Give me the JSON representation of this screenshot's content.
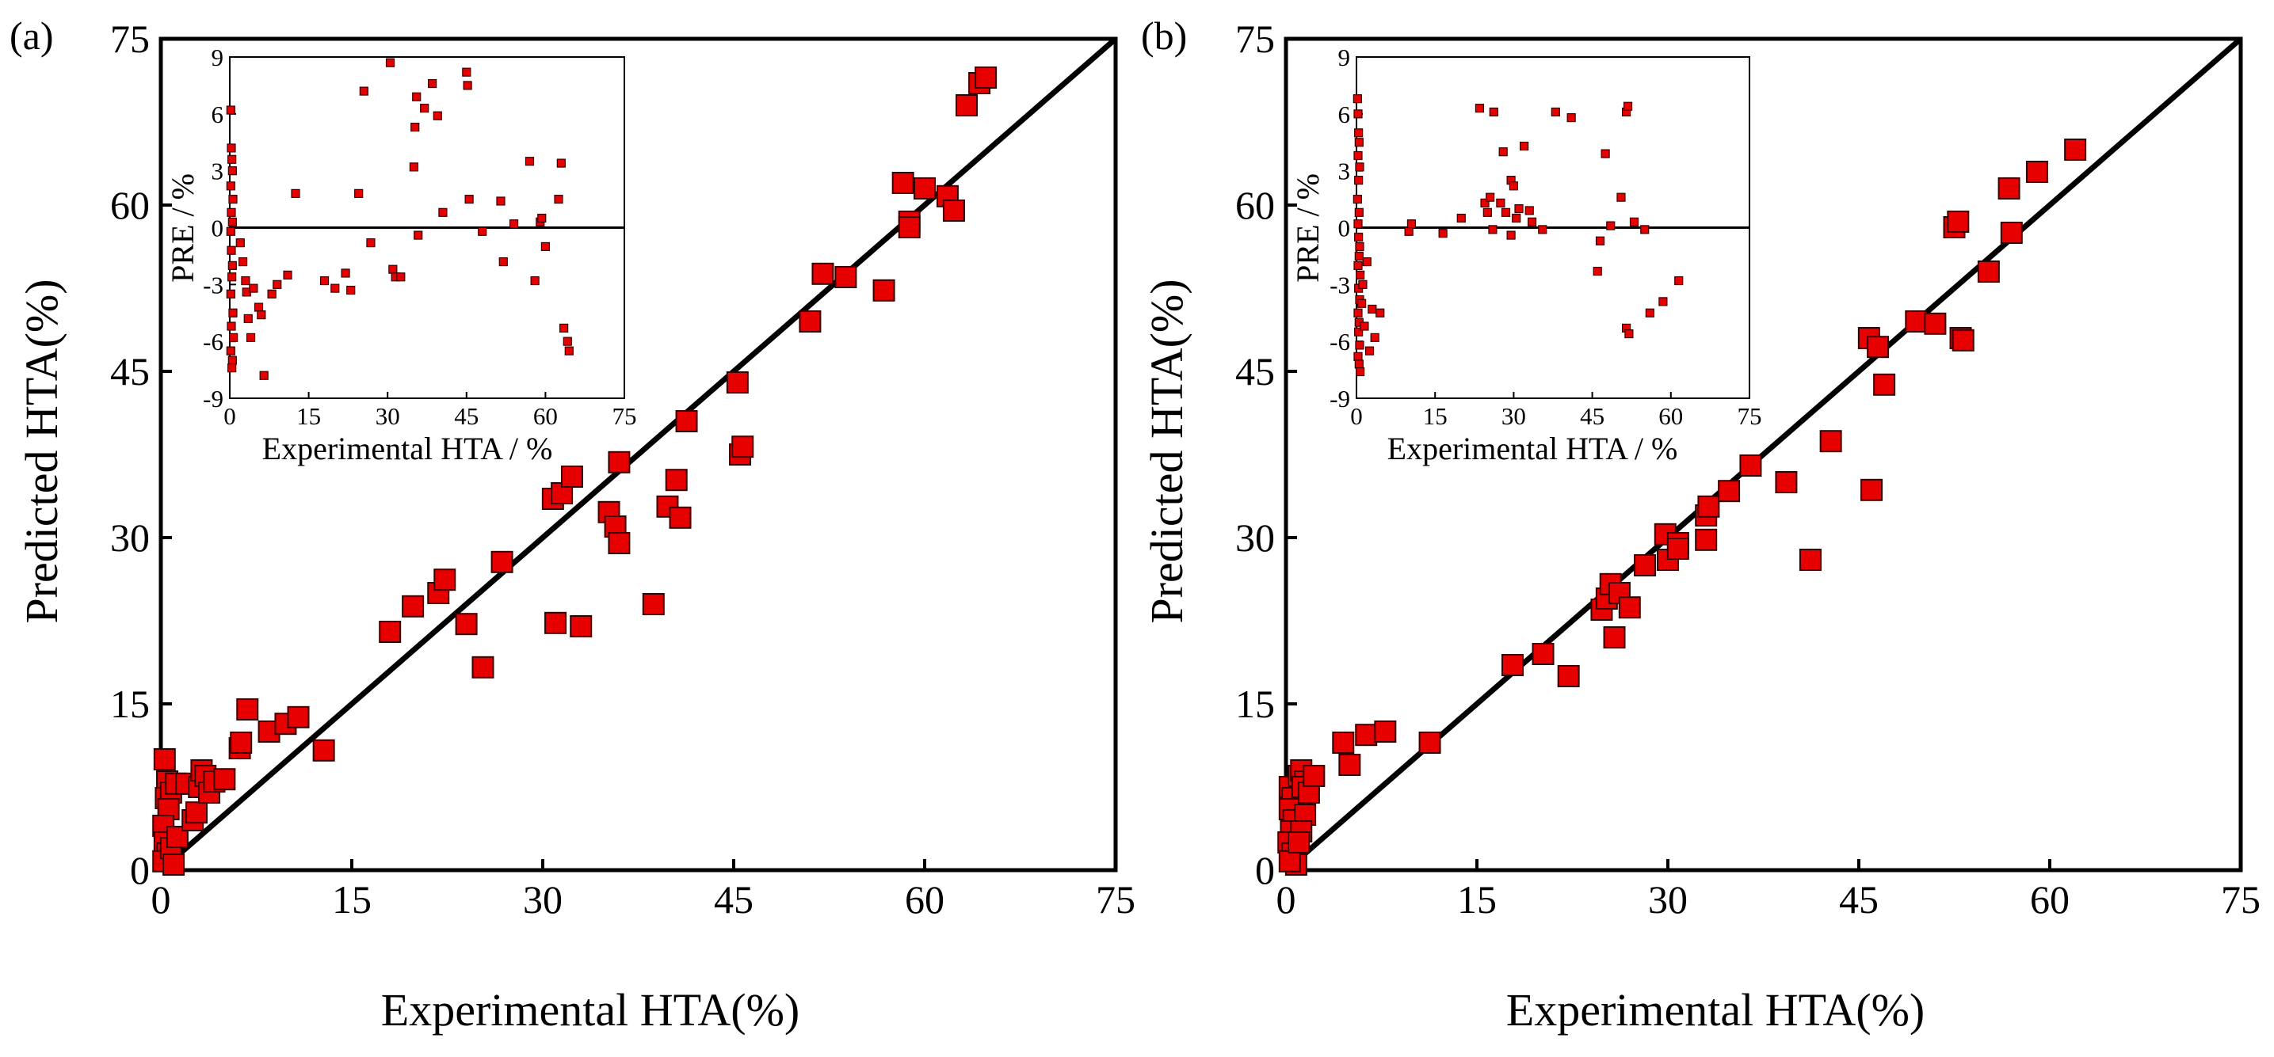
{
  "figure": {
    "panels": [
      "(a)",
      "(b)"
    ]
  },
  "chart_data": [
    {
      "type": "scatter",
      "panel_label": "(a)",
      "xlabel": "Experimental HTA(%)",
      "ylabel": "Predicted HTA(%)",
      "xlim": [
        0,
        75
      ],
      "ylim": [
        0,
        75
      ],
      "xticks": [
        0,
        15,
        30,
        45,
        60,
        75
      ],
      "yticks": [
        0,
        15,
        30,
        45,
        60,
        75
      ],
      "reference_line": "y = x",
      "marker": "square",
      "marker_color": "#e60000",
      "line_color": "#000000",
      "points": [
        [
          0.3,
          10.0
        ],
        [
          0.5,
          8.0
        ],
        [
          0.4,
          6.5
        ],
        [
          0.8,
          7.0
        ],
        [
          0.6,
          5.5
        ],
        [
          1.2,
          7.8
        ],
        [
          0.2,
          4.0
        ],
        [
          0.3,
          2.5
        ],
        [
          0.5,
          1.5
        ],
        [
          0.2,
          0.8
        ],
        [
          0.8,
          2.0
        ],
        [
          1.0,
          0.5
        ],
        [
          1.3,
          3.0
        ],
        [
          2.0,
          7.8
        ],
        [
          2.5,
          4.5
        ],
        [
          2.8,
          5.2
        ],
        [
          3.0,
          7.5
        ],
        [
          3.2,
          9.0
        ],
        [
          3.5,
          8.5
        ],
        [
          3.8,
          7.0
        ],
        [
          4.2,
          8.0
        ],
        [
          5.0,
          8.2
        ],
        [
          6.2,
          11.0
        ],
        [
          6.3,
          11.5
        ],
        [
          6.8,
          14.5
        ],
        [
          8.5,
          12.5
        ],
        [
          9.8,
          13.2
        ],
        [
          10.8,
          13.8
        ],
        [
          12.8,
          10.8
        ],
        [
          18.0,
          21.5
        ],
        [
          19.8,
          23.8
        ],
        [
          21.8,
          25.0
        ],
        [
          22.3,
          26.2
        ],
        [
          24.0,
          22.2
        ],
        [
          25.3,
          18.3
        ],
        [
          26.8,
          27.8
        ],
        [
          30.8,
          33.5
        ],
        [
          31.0,
          22.3
        ],
        [
          31.5,
          34.0
        ],
        [
          32.3,
          35.5
        ],
        [
          33.0,
          22.0
        ],
        [
          35.2,
          32.3
        ],
        [
          35.7,
          31.0
        ],
        [
          36.0,
          29.5
        ],
        [
          36.0,
          36.8
        ],
        [
          38.7,
          24.0
        ],
        [
          39.8,
          32.8
        ],
        [
          40.5,
          35.2
        ],
        [
          40.8,
          31.8
        ],
        [
          41.3,
          40.5
        ],
        [
          45.3,
          44.0
        ],
        [
          45.5,
          37.5
        ],
        [
          45.7,
          38.2
        ],
        [
          51.0,
          49.5
        ],
        [
          52.0,
          53.8
        ],
        [
          53.8,
          53.5
        ],
        [
          56.8,
          52.3
        ],
        [
          58.3,
          62.0
        ],
        [
          58.8,
          58.5
        ],
        [
          58.8,
          58.0
        ],
        [
          60.0,
          61.5
        ],
        [
          61.8,
          60.8
        ],
        [
          62.3,
          59.5
        ],
        [
          63.3,
          69.0
        ],
        [
          64.3,
          71.0
        ],
        [
          64.8,
          71.5
        ]
      ],
      "inset": {
        "type": "scatter",
        "xlabel": "Experimental HTA / %",
        "ylabel": "PRE / %",
        "xlim": [
          0,
          75
        ],
        "ylim": [
          -9,
          9
        ],
        "xticks": [
          0,
          15,
          30,
          45,
          60,
          75
        ],
        "yticks": [
          -9,
          -6,
          -3,
          0,
          3,
          6,
          9
        ],
        "reference_line": "y = 0",
        "points": [
          [
            0.2,
            6.2
          ],
          [
            0.3,
            4.2
          ],
          [
            0.4,
            3.6
          ],
          [
            0.5,
            3.0
          ],
          [
            0.2,
            2.2
          ],
          [
            0.6,
            1.5
          ],
          [
            0.3,
            0.8
          ],
          [
            0.5,
            0.3
          ],
          [
            0.2,
            -0.2
          ],
          [
            0.3,
            -1.2
          ],
          [
            0.5,
            -2.0
          ],
          [
            0.4,
            -2.6
          ],
          [
            0.2,
            -3.5
          ],
          [
            0.6,
            -4.5
          ],
          [
            0.3,
            -5.2
          ],
          [
            0.7,
            -5.8
          ],
          [
            0.2,
            -6.5
          ],
          [
            0.5,
            -7.0
          ],
          [
            0.4,
            -7.4
          ],
          [
            2.0,
            -0.8
          ],
          [
            2.5,
            -1.8
          ],
          [
            3.0,
            -2.8
          ],
          [
            3.2,
            -3.4
          ],
          [
            3.5,
            -4.8
          ],
          [
            4.0,
            -5.8
          ],
          [
            4.5,
            -3.2
          ],
          [
            5.5,
            -4.2
          ],
          [
            6.0,
            -4.6
          ],
          [
            6.5,
            -7.8
          ],
          [
            8.0,
            -3.5
          ],
          [
            9.0,
            -3.0
          ],
          [
            11.0,
            -2.5
          ],
          [
            12.5,
            1.8
          ],
          [
            18.0,
            -2.8
          ],
          [
            20.0,
            -3.2
          ],
          [
            22.0,
            -2.4
          ],
          [
            23.0,
            -3.3
          ],
          [
            24.5,
            1.8
          ],
          [
            25.5,
            7.2
          ],
          [
            26.8,
            -0.8
          ],
          [
            30.5,
            8.7
          ],
          [
            31.0,
            -2.2
          ],
          [
            31.5,
            -2.6
          ],
          [
            32.5,
            -2.6
          ],
          [
            35.0,
            3.2
          ],
          [
            35.2,
            5.3
          ],
          [
            35.5,
            6.9
          ],
          [
            35.8,
            -0.4
          ],
          [
            37.0,
            6.3
          ],
          [
            38.5,
            7.6
          ],
          [
            39.5,
            5.9
          ],
          [
            40.5,
            0.8
          ],
          [
            45.0,
            8.2
          ],
          [
            45.2,
            7.5
          ],
          [
            45.5,
            1.5
          ],
          [
            48.0,
            -0.2
          ],
          [
            51.5,
            1.4
          ],
          [
            52.0,
            -1.8
          ],
          [
            54.0,
            0.2
          ],
          [
            57.0,
            3.5
          ],
          [
            58.0,
            -2.8
          ],
          [
            59.0,
            0.3
          ],
          [
            59.3,
            0.5
          ],
          [
            60.0,
            -1.0
          ],
          [
            62.5,
            1.5
          ],
          [
            63.0,
            3.4
          ],
          [
            63.5,
            -5.3
          ],
          [
            64.2,
            -6.0
          ],
          [
            64.5,
            -6.5
          ]
        ]
      }
    },
    {
      "type": "scatter",
      "panel_label": "(b)",
      "xlabel": "Experimental HTA(%)",
      "ylabel": "Predicted HTA(%)",
      "xlim": [
        0,
        75
      ],
      "ylim": [
        0,
        75
      ],
      "xticks": [
        0,
        15,
        30,
        45,
        60,
        75
      ],
      "yticks": [
        0,
        15,
        30,
        45,
        60,
        75
      ],
      "reference_line": "y = x",
      "marker": "square",
      "marker_color": "#e60000",
      "line_color": "#000000",
      "points": [
        [
          0.3,
          7.5
        ],
        [
          0.5,
          6.5
        ],
        [
          0.3,
          5.5
        ],
        [
          0.6,
          4.5
        ],
        [
          0.4,
          3.5
        ],
        [
          0.2,
          2.5
        ],
        [
          0.5,
          1.5
        ],
        [
          0.8,
          0.5
        ],
        [
          0.3,
          0.8
        ],
        [
          1.0,
          8.5
        ],
        [
          1.2,
          9.0
        ],
        [
          1.5,
          8.0
        ],
        [
          1.3,
          7.5
        ],
        [
          1.8,
          7.0
        ],
        [
          1.5,
          5.0
        ],
        [
          1.2,
          3.5
        ],
        [
          1.0,
          2.5
        ],
        [
          2.2,
          8.5
        ],
        [
          4.5,
          11.5
        ],
        [
          5.0,
          9.5
        ],
        [
          6.3,
          12.2
        ],
        [
          7.8,
          12.5
        ],
        [
          11.3,
          11.5
        ],
        [
          17.8,
          18.5
        ],
        [
          20.2,
          19.5
        ],
        [
          22.2,
          17.5
        ],
        [
          24.8,
          23.5
        ],
        [
          25.2,
          24.5
        ],
        [
          25.5,
          25.8
        ],
        [
          25.8,
          21.0
        ],
        [
          26.2,
          25.0
        ],
        [
          27.0,
          23.7
        ],
        [
          28.2,
          27.5
        ],
        [
          29.8,
          30.3
        ],
        [
          30.0,
          28.0
        ],
        [
          30.8,
          29.5
        ],
        [
          30.8,
          29.0
        ],
        [
          33.0,
          32.0
        ],
        [
          33.0,
          29.8
        ],
        [
          33.2,
          32.8
        ],
        [
          34.8,
          34.2
        ],
        [
          36.5,
          36.5
        ],
        [
          39.3,
          35.0
        ],
        [
          41.2,
          28.0
        ],
        [
          42.8,
          38.7
        ],
        [
          45.8,
          48.0
        ],
        [
          46.0,
          34.3
        ],
        [
          46.5,
          47.2
        ],
        [
          47.0,
          43.8
        ],
        [
          49.5,
          49.5
        ],
        [
          51.0,
          49.3
        ],
        [
          52.5,
          58.0
        ],
        [
          52.8,
          58.5
        ],
        [
          53.0,
          48.0
        ],
        [
          53.2,
          47.8
        ],
        [
          55.2,
          54.0
        ],
        [
          56.8,
          61.5
        ],
        [
          57.0,
          57.5
        ],
        [
          59.0,
          63.0
        ],
        [
          62.0,
          65.0
        ]
      ],
      "inset": {
        "type": "scatter",
        "xlabel": "Experimental HTA / %",
        "ylabel": "PRE / %",
        "xlim": [
          0,
          75
        ],
        "ylim": [
          -9,
          9
        ],
        "xticks": [
          0,
          15,
          30,
          45,
          60,
          75
        ],
        "yticks": [
          -9,
          -6,
          -3,
          0,
          3,
          6,
          9
        ],
        "reference_line": "y = 0",
        "points": [
          [
            0.2,
            6.8
          ],
          [
            0.3,
            6.0
          ],
          [
            0.4,
            5.0
          ],
          [
            0.5,
            4.5
          ],
          [
            0.3,
            3.8
          ],
          [
            0.6,
            3.2
          ],
          [
            0.4,
            2.5
          ],
          [
            0.2,
            1.5
          ],
          [
            0.5,
            0.8
          ],
          [
            0.3,
            0.2
          ],
          [
            0.4,
            -0.5
          ],
          [
            0.6,
            -1.0
          ],
          [
            0.5,
            -1.5
          ],
          [
            0.3,
            -2.0
          ],
          [
            0.7,
            -2.5
          ],
          [
            0.4,
            -3.2
          ],
          [
            0.6,
            -3.8
          ],
          [
            0.3,
            -4.5
          ],
          [
            0.5,
            -5.0
          ],
          [
            0.4,
            -5.5
          ],
          [
            0.6,
            -6.2
          ],
          [
            0.3,
            -6.8
          ],
          [
            0.5,
            -7.2
          ],
          [
            0.7,
            -7.6
          ],
          [
            1.0,
            -4.0
          ],
          [
            1.2,
            -3.0
          ],
          [
            1.5,
            -5.2
          ],
          [
            2.0,
            -1.8
          ],
          [
            2.5,
            -6.5
          ],
          [
            3.0,
            -4.3
          ],
          [
            3.5,
            -5.8
          ],
          [
            4.5,
            -4.5
          ],
          [
            10.0,
            -0.2
          ],
          [
            10.5,
            0.2
          ],
          [
            16.5,
            -0.3
          ],
          [
            20.0,
            0.5
          ],
          [
            23.5,
            6.3
          ],
          [
            24.5,
            1.3
          ],
          [
            25.0,
            0.8
          ],
          [
            25.5,
            1.6
          ],
          [
            26.0,
            -0.1
          ],
          [
            26.2,
            6.1
          ],
          [
            27.5,
            1.3
          ],
          [
            28.0,
            4.0
          ],
          [
            28.5,
            0.8
          ],
          [
            29.5,
            -0.4
          ],
          [
            29.5,
            2.5
          ],
          [
            30.0,
            2.2
          ],
          [
            30.5,
            0.5
          ],
          [
            31.0,
            1.0
          ],
          [
            32.0,
            4.3
          ],
          [
            33.0,
            0.9
          ],
          [
            33.5,
            0.3
          ],
          [
            35.5,
            -0.1
          ],
          [
            38.0,
            6.1
          ],
          [
            41.0,
            5.8
          ],
          [
            46.0,
            -2.3
          ],
          [
            46.5,
            -0.7
          ],
          [
            47.5,
            3.9
          ],
          [
            48.5,
            0.1
          ],
          [
            50.5,
            1.6
          ],
          [
            51.5,
            6.1
          ],
          [
            51.8,
            6.4
          ],
          [
            51.5,
            -5.3
          ],
          [
            52.0,
            -5.6
          ],
          [
            53.0,
            0.3
          ],
          [
            55.0,
            -0.1
          ],
          [
            56.0,
            -4.5
          ],
          [
            58.5,
            -3.9
          ],
          [
            61.5,
            -2.8
          ]
        ]
      }
    }
  ]
}
